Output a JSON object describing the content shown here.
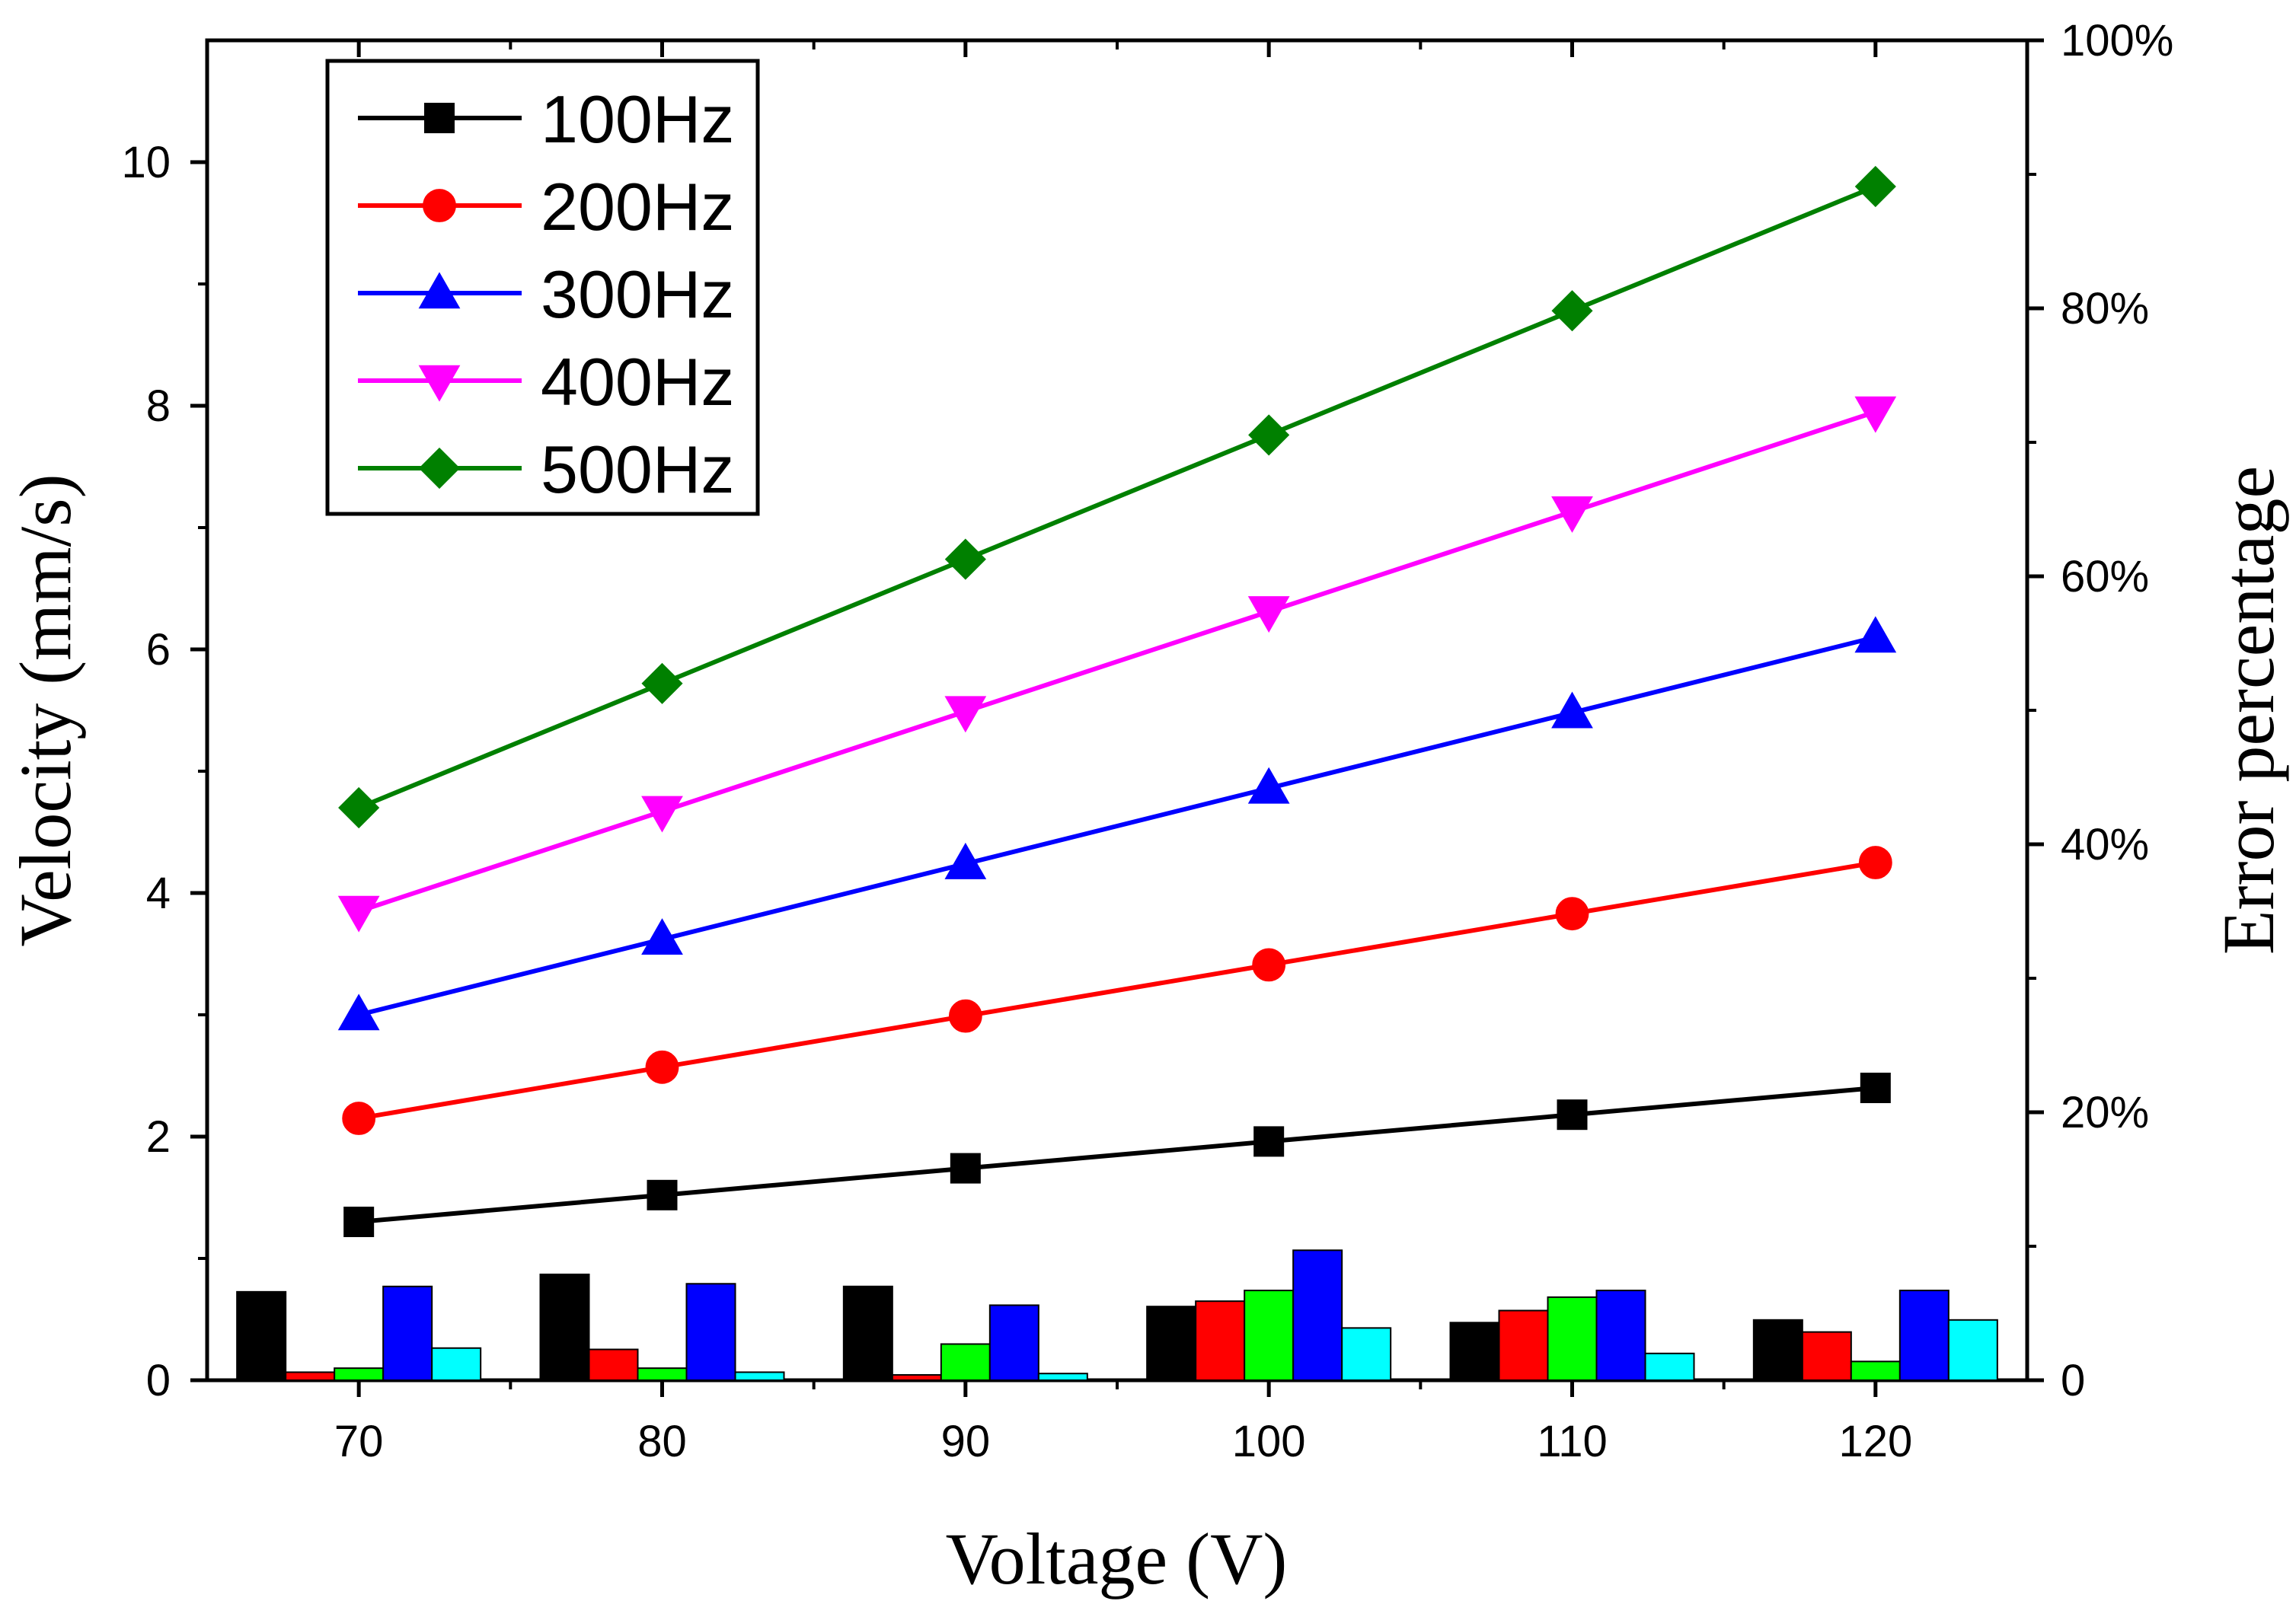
{
  "chart_data": {
    "type": "line+bar",
    "x": [
      70,
      80,
      90,
      100,
      110,
      120
    ],
    "xlabel": "Voltage (V)",
    "ylabel": "Velocity (mm/s)",
    "y2label": "Error percentage",
    "xlim": [
      65,
      125
    ],
    "ylim": [
      0,
      11
    ],
    "y2lim": [
      0,
      100
    ],
    "xticks": [
      "70",
      "80",
      "90",
      "100",
      "110",
      "120"
    ],
    "yticks": [
      "0",
      "2",
      "4",
      "6",
      "8",
      "10"
    ],
    "y2ticks": [
      "0",
      "20%",
      "40%",
      "60%",
      "80%",
      "100%"
    ],
    "legend_position": "top-left",
    "series": [
      {
        "name": "100Hz",
        "color": "#000000",
        "marker": "square",
        "values": [
          1.3,
          1.52,
          1.74,
          1.96,
          2.18,
          2.4
        ]
      },
      {
        "name": "200Hz",
        "color": "#ff0000",
        "marker": "circle",
        "values": [
          2.15,
          2.57,
          2.99,
          3.41,
          3.83,
          4.25
        ]
      },
      {
        "name": "300Hz",
        "color": "#0000ff",
        "marker": "triangle-up",
        "values": [
          3.0,
          3.62,
          4.24,
          4.86,
          5.48,
          6.1
        ]
      },
      {
        "name": "400Hz",
        "color": "#ff00ff",
        "marker": "triangle-down",
        "values": [
          3.85,
          4.67,
          5.49,
          6.31,
          7.13,
          7.95
        ]
      },
      {
        "name": "500Hz",
        "color": "#008000",
        "marker": "diamond",
        "values": [
          4.7,
          5.72,
          6.74,
          7.76,
          8.78,
          9.8
        ]
      }
    ],
    "error_bars": {
      "axis": "right",
      "unit": "%",
      "colors": [
        "#000000",
        "#ff0000",
        "#00ff00",
        "#0000ff",
        "#00ffff"
      ],
      "groups": [
        [
          6.6,
          0.6,
          0.9,
          7.0,
          2.4
        ],
        [
          7.9,
          2.3,
          0.9,
          7.2,
          0.6
        ],
        [
          7.0,
          0.4,
          2.7,
          5.6,
          0.5
        ],
        [
          5.5,
          5.9,
          6.7,
          9.7,
          3.9
        ],
        [
          4.3,
          5.2,
          6.2,
          6.7,
          2.0
        ],
        [
          4.5,
          3.6,
          1.4,
          6.7,
          4.5
        ]
      ]
    }
  }
}
